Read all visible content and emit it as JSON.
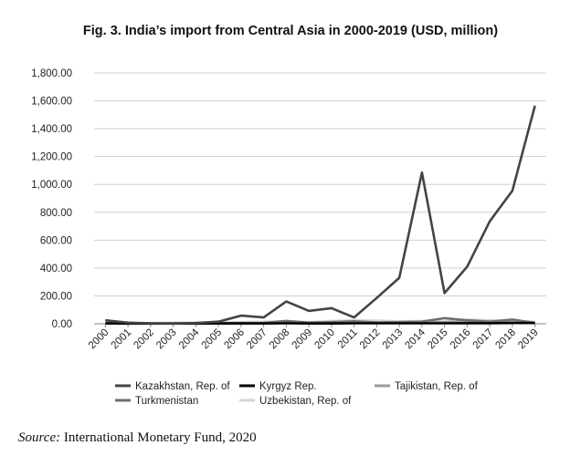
{
  "title": "Fig. 3. India’s import from Central Asia in 2000-2019 (USD, million)",
  "source_label": "Source:",
  "source_text": " International Monetary Fund, 2020",
  "chart_data": {
    "type": "line",
    "title": "Fig. 3. India’s import from Central Asia in 2000-2019 (USD, million)",
    "xlabel": "",
    "ylabel": "",
    "ylim": [
      0,
      1800
    ],
    "yticks": [
      "0.00",
      "200.00",
      "400.00",
      "600.00",
      "800.00",
      "1,000.00",
      "1,200.00",
      "1,400.00",
      "1,600.00",
      "1,800.00"
    ],
    "categories": [
      "2000",
      "2001",
      "2002",
      "2003",
      "2004",
      "2005",
      "2006",
      "2007",
      "2008",
      "2009",
      "2010",
      "2011",
      "2012",
      "2013",
      "2014",
      "2015",
      "2016",
      "2017",
      "2018",
      "2019"
    ],
    "grid": true,
    "legend_position": "bottom",
    "series": [
      {
        "name": "Kazakhstan, Rep. of",
        "color": "#444444",
        "values": [
          25,
          8,
          3,
          2,
          5,
          15,
          58,
          45,
          160,
          92,
          112,
          45,
          185,
          330,
          1085,
          220,
          410,
          735,
          955,
          1565
        ]
      },
      {
        "name": "Kyrgyz Rep.",
        "color": "#000000",
        "values": [
          2,
          1,
          1,
          1,
          1,
          2,
          2,
          2,
          3,
          2,
          2,
          3,
          3,
          3,
          3,
          3,
          4,
          4,
          5,
          5
        ]
      },
      {
        "name": "Tajikistan, Rep. of",
        "color": "#9a9a9a",
        "values": [
          3,
          2,
          2,
          2,
          3,
          3,
          4,
          5,
          6,
          4,
          5,
          7,
          6,
          8,
          10,
          12,
          15,
          10,
          12,
          8
        ]
      },
      {
        "name": "Turkmenistan",
        "color": "#6e6e6e",
        "values": [
          5,
          3,
          2,
          4,
          3,
          4,
          5,
          6,
          20,
          8,
          12,
          18,
          10,
          12,
          15,
          40,
          25,
          15,
          30,
          5
        ]
      },
      {
        "name": "Uzbekistan, Rep. of",
        "color": "#d6d6d6",
        "values": [
          6,
          5,
          4,
          6,
          8,
          10,
          12,
          14,
          18,
          12,
          20,
          25,
          22,
          18,
          20,
          15,
          30,
          25,
          20,
          15
        ]
      }
    ]
  }
}
